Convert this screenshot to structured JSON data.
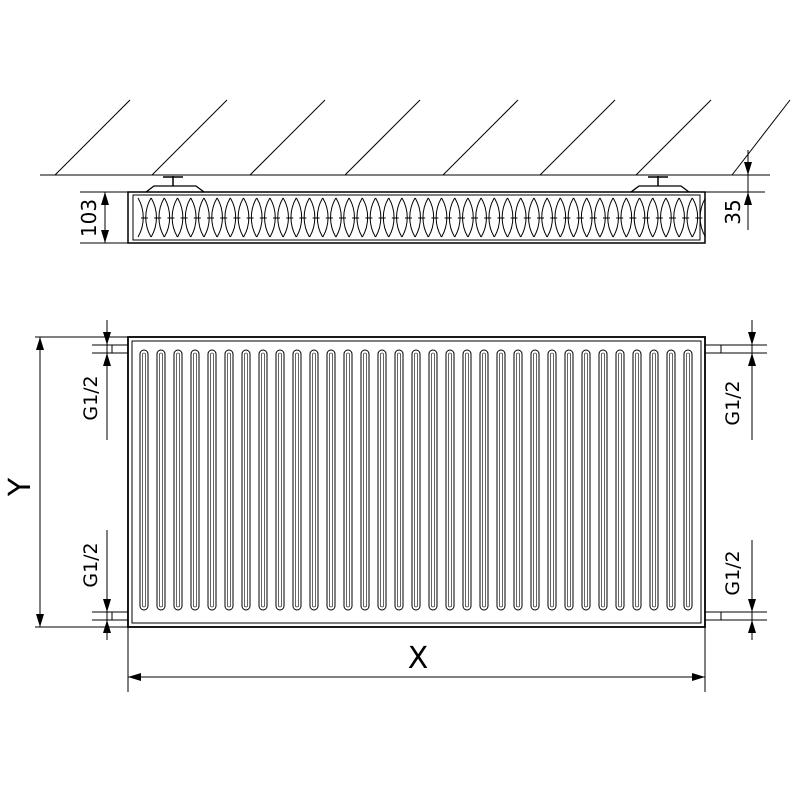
{
  "top_view": {
    "height_label": "103",
    "wall_offset_label": "35"
  },
  "front_view": {
    "height_label": "Y",
    "width_label": "X",
    "connection_labels": {
      "left_top": "G1/2",
      "left_bottom": "G1/2",
      "right_top": "G1/2",
      "right_bottom": "G1/2"
    }
  },
  "colors": {
    "line": "#000000",
    "background": "#ffffff"
  }
}
